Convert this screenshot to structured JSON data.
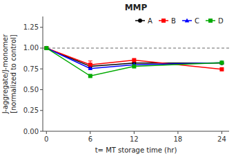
{
  "chart_data": {
    "type": "line",
    "title": "MMP",
    "x_label": "t= MT storage time  (hr)",
    "y_label": "J-aggregate/J-monomer\n[normalized to control]",
    "x": [
      0,
      6,
      12,
      24
    ],
    "xlim": [
      -0.5,
      25
    ],
    "xticks": [
      0,
      6,
      12,
      18,
      24
    ],
    "ylim": [
      0,
      1.38
    ],
    "yticks": [
      {
        "value": 0.0,
        "label": "0.00"
      },
      {
        "value": 0.25,
        "label": "0.25"
      },
      {
        "value": 0.5,
        "label": "0.50"
      },
      {
        "value": 0.75,
        "label": "0.75"
      },
      {
        "value": 1.0,
        "label": "1.00"
      },
      {
        "value": 1.25,
        "label": "1.25"
      }
    ],
    "series": [
      {
        "name": "A",
        "color": "#000000",
        "marker": "circle",
        "values": [
          1.0,
          0.78,
          0.82,
          0.82
        ]
      },
      {
        "name": "B",
        "color": "#ff0000",
        "marker": "square",
        "values": [
          1.0,
          0.8,
          0.855,
          0.745
        ],
        "errors": [
          null,
          0.045,
          null,
          null
        ]
      },
      {
        "name": "C",
        "color": "#0000ff",
        "marker": "triangle",
        "values": [
          1.0,
          0.755,
          0.8,
          0.825
        ]
      },
      {
        "name": "D",
        "color": "#00aa00",
        "marker": "square",
        "values": [
          1.0,
          0.665,
          0.78,
          0.825
        ]
      }
    ],
    "reference_line": {
      "y": 1.0,
      "line_style": "dashed"
    },
    "legend": "upper right",
    "grid": false
  }
}
